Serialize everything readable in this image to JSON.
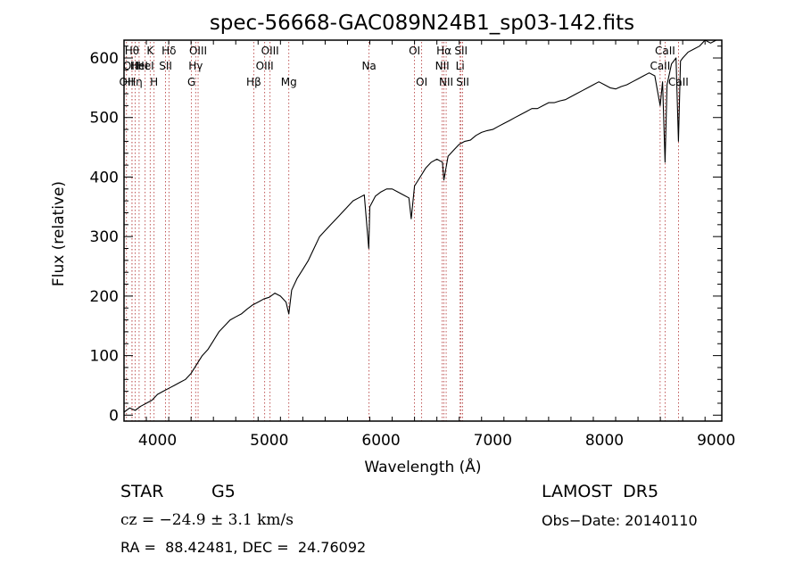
{
  "chart_data": {
    "type": "line",
    "title": "spec-56668-GAC089N24B1_sp03-142.fits",
    "xlabel": "Wavelength (Å)",
    "ylabel": "Flux (relative)",
    "xlim": [
      3700,
      9050
    ],
    "ylim": [
      -10,
      630
    ],
    "xticks": [
      "4000",
      "5000",
      "6000",
      "7000",
      "8000",
      "9000"
    ],
    "yticks": [
      "0",
      "100",
      "200",
      "300",
      "400",
      "500",
      "600"
    ],
    "xtick_values": [
      4000,
      5000,
      6000,
      7000,
      8000,
      9000
    ],
    "ytick_values": [
      0,
      100,
      200,
      300,
      400,
      500,
      600
    ],
    "series": [
      {
        "x": [
          3700,
          3750,
          3800,
          3850,
          3900,
          3950,
          4000,
          4050,
          4100,
          4150,
          4200,
          4250,
          4300,
          4350,
          4400,
          4450,
          4500,
          4550,
          4600,
          4650,
          4700,
          4750,
          4800,
          4850,
          4900,
          4950,
          5000,
          5050,
          5100,
          5150,
          5175,
          5200,
          5250,
          5300,
          5350,
          5400,
          5450,
          5500,
          5550,
          5600,
          5650,
          5700,
          5750,
          5800,
          5850,
          5890,
          5900,
          5950,
          6000,
          6050,
          6100,
          6150,
          6200,
          6250,
          6270,
          6300,
          6350,
          6400,
          6450,
          6500,
          6550,
          6563,
          6600,
          6650,
          6700,
          6750,
          6800,
          6850,
          6900,
          6950,
          7000,
          7050,
          7100,
          7150,
          7200,
          7250,
          7300,
          7350,
          7400,
          7450,
          7500,
          7550,
          7600,
          7650,
          7700,
          7750,
          7800,
          7850,
          7900,
          7950,
          8000,
          8050,
          8100,
          8150,
          8200,
          8250,
          8300,
          8350,
          8400,
          8450,
          8498,
          8520,
          8542,
          8560,
          8600,
          8640,
          8662,
          8680,
          8700,
          8750,
          8800,
          8850,
          8900,
          8950,
          9000
        ],
        "y": [
          5,
          12,
          8,
          15,
          20,
          25,
          35,
          40,
          45,
          50,
          55,
          60,
          70,
          85,
          100,
          110,
          125,
          140,
          150,
          160,
          165,
          170,
          178,
          185,
          190,
          195,
          198,
          205,
          200,
          190,
          170,
          210,
          230,
          245,
          260,
          280,
          300,
          310,
          320,
          330,
          340,
          350,
          360,
          365,
          370,
          280,
          350,
          368,
          375,
          380,
          380,
          375,
          370,
          365,
          330,
          385,
          400,
          415,
          425,
          430,
          425,
          395,
          435,
          445,
          455,
          460,
          462,
          470,
          475,
          478,
          480,
          485,
          490,
          495,
          500,
          505,
          510,
          515,
          515,
          520,
          525,
          525,
          528,
          530,
          535,
          540,
          545,
          550,
          555,
          560,
          555,
          550,
          548,
          552,
          555,
          560,
          565,
          570,
          575,
          570,
          520,
          560,
          425,
          555,
          590,
          600,
          460,
          595,
          600,
          610,
          615,
          620,
          630,
          625,
          630
        ]
      }
    ],
    "lines": [
      {
        "x": 3722,
        "label": "OII",
        "row": 2
      },
      {
        "x": 3771,
        "label": "Hθ",
        "row": 0
      },
      {
        "x": 3771,
        "label": "OIII",
        "row": 1
      },
      {
        "x": 3799,
        "label": "Hη",
        "row": 2
      },
      {
        "x": 3835,
        "label": "HeI",
        "row": 1
      },
      {
        "x": 3889,
        "label": "HeI",
        "row": 1
      },
      {
        "x": 3934,
        "label": "K",
        "row": 0
      },
      {
        "x": 3969,
        "label": "H",
        "row": 2
      },
      {
        "x": 4072,
        "label": "SII",
        "row": 1
      },
      {
        "x": 4102,
        "label": "Hδ",
        "row": 0
      },
      {
        "x": 4304,
        "label": "G",
        "row": 2
      },
      {
        "x": 4341,
        "label": "Hγ",
        "row": 1
      },
      {
        "x": 4363,
        "label": "OIII",
        "row": 0
      },
      {
        "x": 4861,
        "label": "Hβ",
        "row": 2
      },
      {
        "x": 4959,
        "label": "OIII",
        "row": 1
      },
      {
        "x": 5007,
        "label": "OIII",
        "row": 0
      },
      {
        "x": 5175,
        "label": "Mg",
        "row": 2
      },
      {
        "x": 5893,
        "label": "Na",
        "row": 1
      },
      {
        "x": 6300,
        "label": "OI",
        "row": 0
      },
      {
        "x": 6364,
        "label": "OI",
        "row": 2
      },
      {
        "x": 6548,
        "label": "NII",
        "row": 1
      },
      {
        "x": 6563,
        "label": "Hα",
        "row": 0
      },
      {
        "x": 6583,
        "label": "NII",
        "row": 2
      },
      {
        "x": 6708,
        "label": "Li",
        "row": 1
      },
      {
        "x": 6716,
        "label": "SII",
        "row": 0
      },
      {
        "x": 6731,
        "label": "SII",
        "row": 2
      },
      {
        "x": 8498,
        "label": "CaII",
        "row": 1
      },
      {
        "x": 8542,
        "label": "CaII",
        "row": 0
      },
      {
        "x": 8662,
        "label": "CaII",
        "row": 2
      }
    ]
  },
  "info": {
    "object_class": "STAR",
    "subclass": "G5",
    "survey": "LAMOST  DR5",
    "redshift": "cz = −24.9 ± 3.1 km/s",
    "obs_date": "Obs−Date: 20140110",
    "coords": "RA =  88.42481, DEC =  24.76092"
  }
}
